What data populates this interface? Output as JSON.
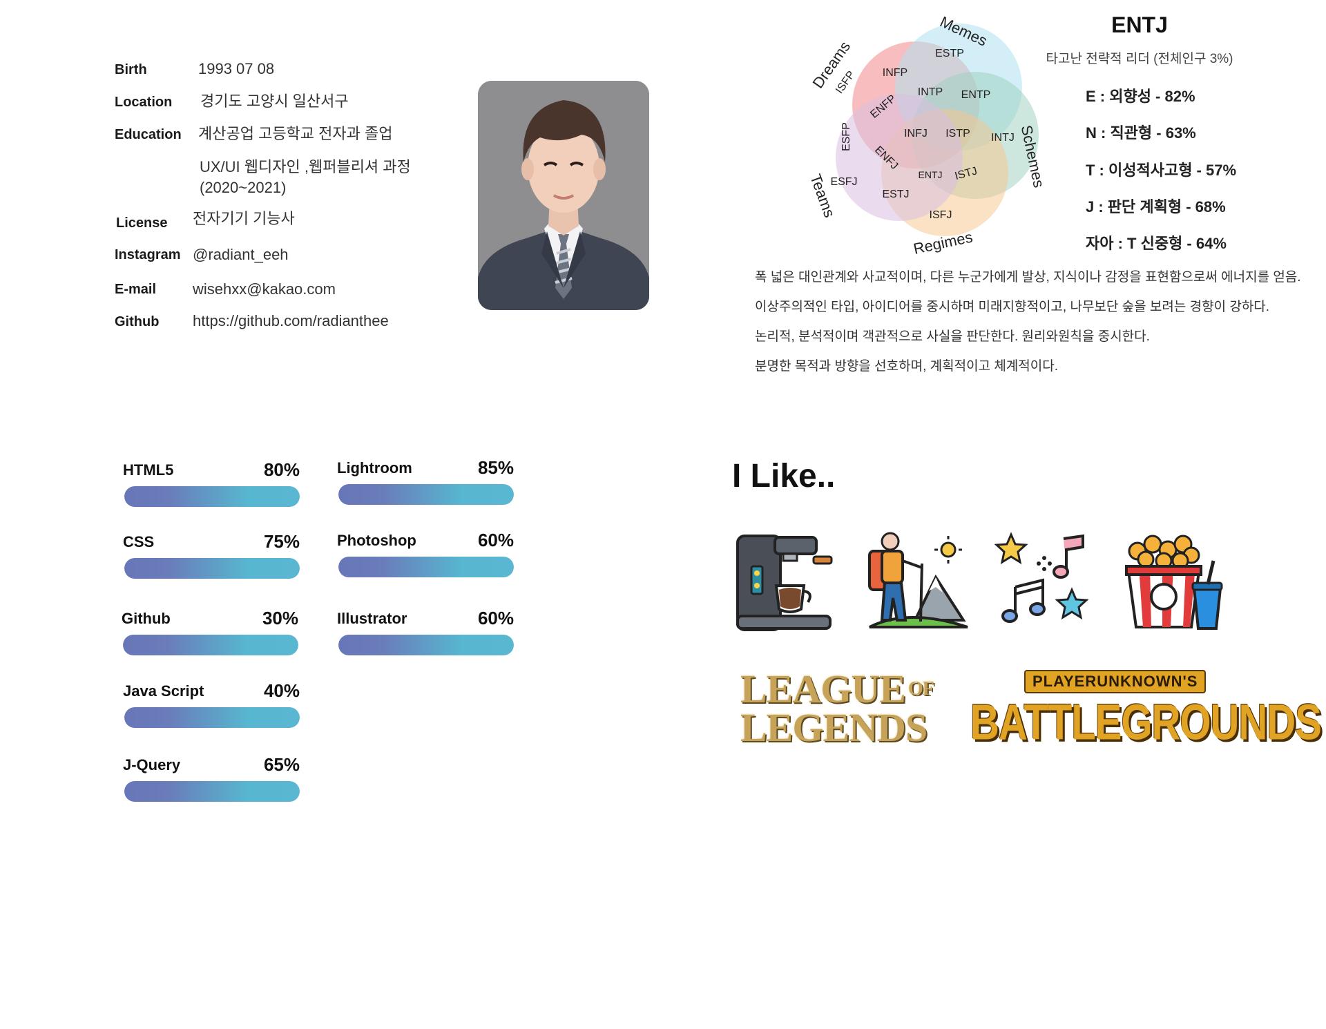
{
  "profile": {
    "rows": [
      {
        "label": "Birth",
        "value": "1993 07 08"
      },
      {
        "label": "Location",
        "value": "경기도 고양시 일산서구"
      },
      {
        "label": "Education",
        "value": "계산공업 고등학교 전자과 졸업"
      },
      {
        "label": "",
        "value": "UX/UI  웹디자인 ,웹퍼블리셔  과정"
      },
      {
        "label": "",
        "value": "(2020~2021)"
      },
      {
        "label": "License",
        "value": "전자기기 기능사"
      },
      {
        "label": "Instagram",
        "value": "@radiant_eeh"
      },
      {
        "label": "E-mail",
        "value": "wisehxx@kakao.com"
      },
      {
        "label": "Github",
        "value": "https://github.com/radianthee"
      }
    ]
  },
  "mbti": {
    "type": "ENTJ",
    "subtitle": "타고난 전략적 리더 (전체인구 3%)",
    "traits": [
      "E : 외향성 - 82%",
      "N : 직관형 - 63%",
      "T : 이성적사고형 - 57%",
      "J : 판단 계획형 - 68%",
      "자아 : T 신중형 - 64%"
    ],
    "description": [
      "폭 넓은 대인관계와 사교적이며, 다른 누군가에게 발상, 지식이나 감정을 표현함으로써 에너지를 얻음.",
      "이상주의적인 타입, 아이디어를 중시하며 미래지향적이고, 나무보단 숲을 보려는 경향이 강하다.",
      "논리적, 분석적이며 객관적으로 사실을 판단한다. 원리와원칙을 중시한다.",
      "분명한 목적과 방향을 선호하며, 계획적이고 체계적이다."
    ],
    "venn": {
      "outer_labels": [
        "Memes",
        "Dreams",
        "Schemes",
        "Teams",
        "Regimes"
      ],
      "types": [
        "ESTP",
        "ISFP",
        "INFP",
        "INTP",
        "ENTP",
        "ENFP",
        "INFJ",
        "ISTP",
        "INTJ",
        "ESFP",
        "ENFJ",
        "ENTJ",
        "ISTJ",
        "ESFJ",
        "ESTJ",
        "ISFJ"
      ],
      "colors": [
        "#ef6f72",
        "#aee0ef",
        "#9bcfbd",
        "#f8c58b",
        "#d9bfe0"
      ]
    }
  },
  "skills": [
    {
      "name": "HTML5",
      "percent": "80%",
      "value": 80
    },
    {
      "name": "CSS",
      "percent": "75%",
      "value": 75
    },
    {
      "name": "Github",
      "percent": "30%",
      "value": 30
    },
    {
      "name": "Java Script",
      "percent": "40%",
      "value": 40
    },
    {
      "name": "J-Query",
      "percent": "65%",
      "value": 65
    },
    {
      "name": "Lightroom",
      "percent": "85%",
      "value": 85
    },
    {
      "name": "Photoshop",
      "percent": "60%",
      "value": 60
    },
    {
      "name": "Illustrator",
      "percent": "60%",
      "value": 60
    }
  ],
  "likes": {
    "title": "I Like..",
    "icons": [
      "coffee-machine-icon",
      "hiking-icon",
      "music-icon",
      "popcorn-icon"
    ],
    "games": [
      {
        "line1": "LEAGUE",
        "of": "OF",
        "line2": "LEGENDS"
      },
      {
        "line1": "PLAYERUNKNOWN'S",
        "line2": "BATTLEGROUNDS"
      }
    ]
  }
}
